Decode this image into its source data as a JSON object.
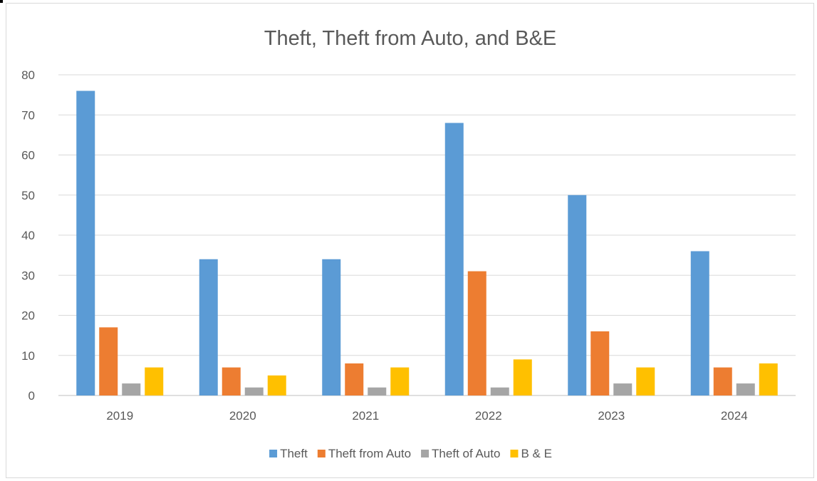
{
  "chart_data": {
    "type": "bar",
    "title": "Theft, Theft from Auto, and B&E",
    "xlabel": "",
    "ylabel": "",
    "categories": [
      "2019",
      "2020",
      "2021",
      "2022",
      "2023",
      "2024"
    ],
    "series": [
      {
        "name": "Theft",
        "color": "#5b9bd5",
        "values": [
          76,
          34,
          34,
          68,
          50,
          36
        ]
      },
      {
        "name": "Theft from Auto",
        "color": "#ed7d31",
        "values": [
          17,
          7,
          8,
          31,
          16,
          7
        ]
      },
      {
        "name": "Theft of Auto",
        "color": "#a5a5a5",
        "values": [
          3,
          2,
          2,
          2,
          3,
          3
        ]
      },
      {
        "name": "B & E",
        "color": "#ffc000",
        "values": [
          7,
          5,
          7,
          9,
          7,
          8
        ]
      }
    ],
    "ylim": [
      0,
      80
    ],
    "yticks": [
      "0",
      "10",
      "20",
      "30",
      "40",
      "50",
      "60",
      "70",
      "80"
    ],
    "grid": true,
    "legend_position": "bottom"
  }
}
